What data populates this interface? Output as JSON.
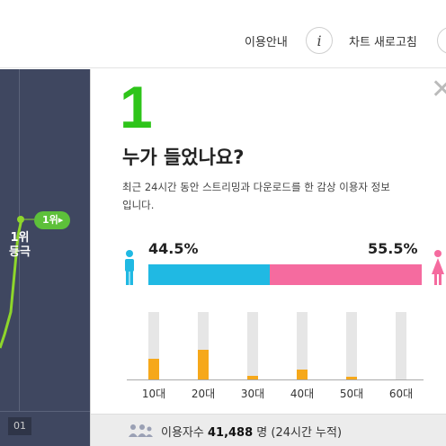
{
  "topbar": {
    "guide_label": "이용안내",
    "info_icon": "i",
    "refresh_label": "차트 새로고침"
  },
  "chart": {
    "rank_badge": "1위▸",
    "rank_text": "1위\n등극",
    "x_label": "01",
    "line_color": "#8ed62b"
  },
  "panel": {
    "rank": "1",
    "title": "누가 들었나요?",
    "description": "최근 24시간 동안 스트리밍과 다운로드를 한 감상 이용자 정보입니다.",
    "close_icon": "close-icon",
    "gender": {
      "male_percent": "44.5%",
      "female_percent": "55.5%",
      "male_value": 44.5,
      "male_color": "#20b9e3",
      "female_color": "#f56b9f"
    },
    "ages": [
      {
        "label": "10대",
        "level": 0.31
      },
      {
        "label": "20대",
        "level": 0.44
      },
      {
        "label": "30대",
        "level": 0.05
      },
      {
        "label": "40대",
        "level": 0.14
      },
      {
        "label": "50대",
        "level": 0.04
      },
      {
        "label": "60대",
        "level": 0.0
      }
    ],
    "footer": {
      "label": "이용자수",
      "count": "41,488",
      "unit": "명 (24시간 누적)"
    }
  }
}
